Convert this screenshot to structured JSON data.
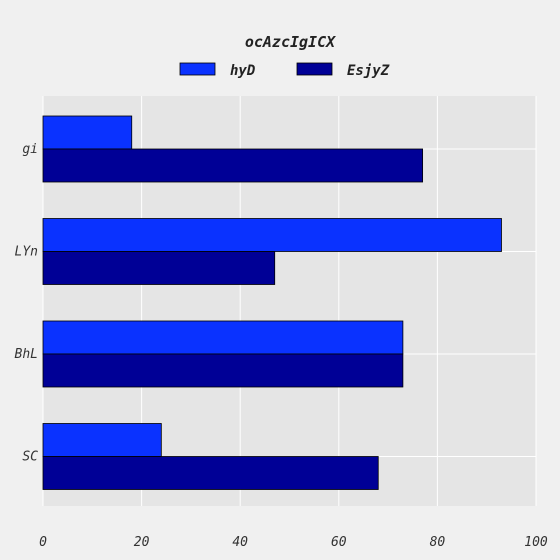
{
  "chart_data": {
    "type": "bar",
    "orientation": "horizontal",
    "title": "ocAzcIgICX",
    "categories": [
      "gi",
      "LYn",
      "BhL",
      "SC"
    ],
    "series": [
      {
        "name": "hyD",
        "values": [
          18,
          93,
          73,
          24
        ],
        "color": "#0a32ff"
      },
      {
        "name": "EsjyZ",
        "values": [
          77,
          47,
          73,
          68
        ],
        "color": "#000096"
      }
    ],
    "xlim": [
      0,
      100
    ],
    "xticks": [
      0,
      20,
      40,
      60,
      80,
      100
    ],
    "xlabel": "",
    "ylabel": "",
    "grid": true,
    "legend_position": "top-center"
  },
  "colors": {
    "background": "#f0f0f0",
    "plot_background": "#e5e5e5",
    "grid": "#ffffff",
    "bar_edge": "#000000"
  }
}
